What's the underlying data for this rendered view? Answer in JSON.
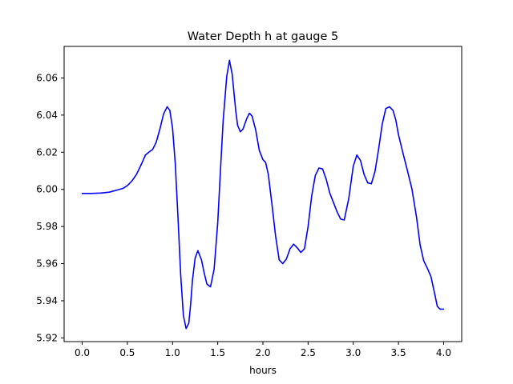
{
  "chart_data": {
    "type": "line",
    "title": "Water Depth h at gauge 5",
    "xlabel": "hours",
    "ylabel": "",
    "xlim": [
      -0.2,
      4.2
    ],
    "ylim": [
      5.918,
      6.077
    ],
    "grid": false,
    "legend": "none",
    "xticks": [
      0.0,
      0.5,
      1.0,
      1.5,
      2.0,
      2.5,
      3.0,
      3.5,
      4.0
    ],
    "xtick_labels": [
      "0.0",
      "0.5",
      "1.0",
      "1.5",
      "2.0",
      "2.5",
      "3.0",
      "3.5",
      "4.0"
    ],
    "yticks": [
      5.92,
      5.94,
      5.96,
      5.98,
      6.0,
      6.02,
      6.04,
      6.06
    ],
    "ytick_labels": [
      "5.92",
      "5.94",
      "5.96",
      "5.98",
      "6.00",
      "6.02",
      "6.04",
      "6.06"
    ],
    "series": [
      {
        "color": "#0000ff",
        "x": [
          0.0,
          0.1,
          0.2,
          0.3,
          0.4,
          0.45,
          0.5,
          0.55,
          0.6,
          0.65,
          0.7,
          0.75,
          0.78,
          0.82,
          0.86,
          0.9,
          0.94,
          0.97,
          1.0,
          1.03,
          1.06,
          1.09,
          1.12,
          1.15,
          1.18,
          1.2,
          1.22,
          1.25,
          1.28,
          1.32,
          1.35,
          1.38,
          1.42,
          1.46,
          1.5,
          1.53,
          1.56,
          1.6,
          1.63,
          1.66,
          1.7,
          1.72,
          1.75,
          1.78,
          1.82,
          1.85,
          1.88,
          1.92,
          1.96,
          2.0,
          2.03,
          2.06,
          2.1,
          2.14,
          2.18,
          2.22,
          2.26,
          2.3,
          2.34,
          2.38,
          2.42,
          2.46,
          2.5,
          2.54,
          2.58,
          2.62,
          2.66,
          2.7,
          2.74,
          2.78,
          2.82,
          2.86,
          2.9,
          2.95,
          3.0,
          3.04,
          3.08,
          3.12,
          3.16,
          3.2,
          3.24,
          3.28,
          3.32,
          3.36,
          3.4,
          3.44,
          3.47,
          3.5,
          3.55,
          3.6,
          3.65,
          3.7,
          3.74,
          3.78,
          3.82,
          3.86,
          3.9,
          3.93,
          3.96,
          4.0
        ],
        "y": [
          5.9978,
          5.9978,
          5.998,
          5.9985,
          5.9998,
          6.0005,
          6.002,
          6.0045,
          6.008,
          6.013,
          6.0185,
          6.0205,
          6.0215,
          6.0255,
          6.0325,
          6.0405,
          6.0445,
          6.0425,
          6.033,
          6.014,
          5.985,
          5.954,
          5.932,
          5.925,
          5.928,
          5.938,
          5.951,
          5.963,
          5.967,
          5.962,
          5.955,
          5.949,
          5.9475,
          5.957,
          5.982,
          6.01,
          6.037,
          6.061,
          6.0695,
          6.062,
          6.042,
          6.0345,
          6.031,
          6.0325,
          6.038,
          6.041,
          6.0395,
          6.032,
          6.021,
          6.016,
          6.0145,
          6.008,
          5.992,
          5.975,
          5.962,
          5.96,
          5.9625,
          5.968,
          5.9705,
          5.9685,
          5.966,
          5.968,
          5.98,
          5.9965,
          6.0075,
          6.0115,
          6.011,
          6.0055,
          5.998,
          5.993,
          5.988,
          5.984,
          5.9835,
          5.995,
          6.0125,
          6.0185,
          6.0155,
          6.008,
          6.0035,
          6.003,
          6.0095,
          6.0215,
          6.035,
          6.0435,
          6.0445,
          6.0425,
          6.0375,
          6.0295,
          6.0195,
          6.01,
          6.0,
          5.985,
          5.97,
          5.9615,
          5.9575,
          5.953,
          5.944,
          5.937,
          5.9355,
          5.9355
        ]
      }
    ]
  }
}
